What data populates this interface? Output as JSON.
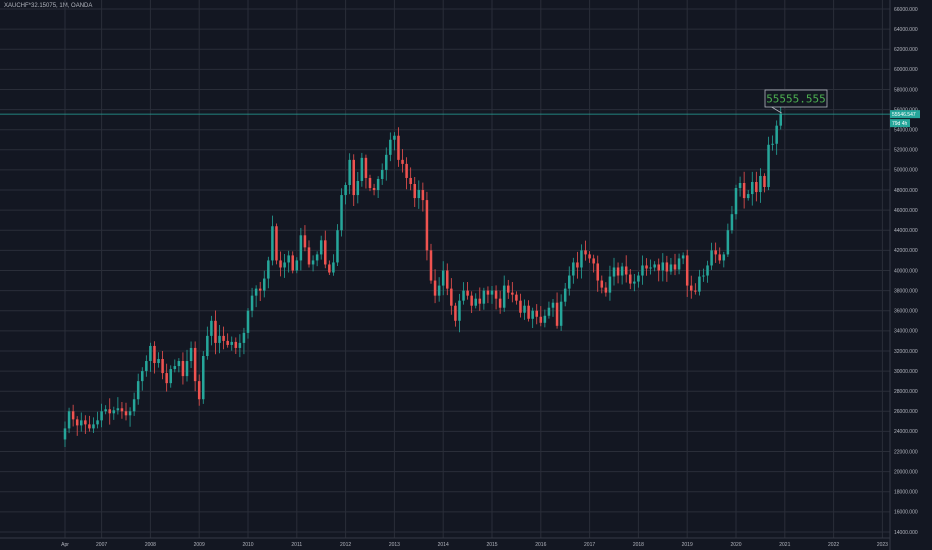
{
  "header": {
    "symbol_info": "XAUCHF*32.15075, 1M, OANDA"
  },
  "colors": {
    "background": "#131722",
    "grid": "#2a2e39",
    "up": "#26a69a",
    "down": "#ef5350",
    "annotation_text": "#4caf50"
  },
  "price_axis": {
    "current_price_label": "55546.547",
    "countdown_label": "79d 4h"
  },
  "annotation": {
    "text": "55555.555"
  },
  "chart_data": {
    "type": "candlestick",
    "interval": "1M",
    "x_start": "2006-04",
    "ylim": [
      13000,
      66000
    ],
    "grid": true,
    "y_ticks": [
      "14000.000",
      "16000.000",
      "18000.000",
      "20000.000",
      "22000.000",
      "24000.000",
      "26000.000",
      "28000.000",
      "30000.000",
      "32000.000",
      "34000.000",
      "36000.000",
      "38000.000",
      "40000.000",
      "42000.000",
      "44000.000",
      "46000.000",
      "48000.000",
      "50000.000",
      "52000.000",
      "54000.000",
      "56000.000",
      "58000.000",
      "60000.000",
      "62000.000",
      "64000.000",
      "66000.000"
    ],
    "x_ticks": [
      {
        "label": "Apr",
        "date": "2006-04"
      },
      {
        "label": "2007",
        "date": "2007-01"
      },
      {
        "label": "2008",
        "date": "2008-01"
      },
      {
        "label": "2009",
        "date": "2009-01"
      },
      {
        "label": "2010",
        "date": "2010-01"
      },
      {
        "label": "2011",
        "date": "2011-01"
      },
      {
        "label": "2012",
        "date": "2012-01"
      },
      {
        "label": "2013",
        "date": "2013-01"
      },
      {
        "label": "2014",
        "date": "2014-01"
      },
      {
        "label": "2015",
        "date": "2015-01"
      },
      {
        "label": "2016",
        "date": "2016-01"
      },
      {
        "label": "2017",
        "date": "2017-01"
      },
      {
        "label": "2018",
        "date": "2018-01"
      },
      {
        "label": "2019",
        "date": "2019-01"
      },
      {
        "label": "2020",
        "date": "2020-01"
      },
      {
        "label": "2021",
        "date": "2021-01"
      },
      {
        "label": "2022",
        "date": "2022-01"
      },
      {
        "label": "2023",
        "date": "2023-01"
      }
    ],
    "last_price": 55546.547,
    "closes": [
      24300,
      26000,
      25200,
      24600,
      25100,
      24700,
      24300,
      24700,
      25100,
      26000,
      26200,
      25800,
      26100,
      26300,
      26000,
      25600,
      26000,
      27200,
      29000,
      30000,
      31000,
      32500,
      30800,
      31200,
      29800,
      28800,
      30200,
      30500,
      31000,
      29500,
      31000,
      32300,
      29000,
      27200,
      31500,
      33500,
      35000,
      32800,
      33500,
      33000,
      32600,
      32900,
      32300,
      32800,
      33800,
      36000,
      37500,
      38200,
      38000,
      39200,
      41000,
      44400,
      41000,
      40300,
      40800,
      41500,
      40000,
      41000,
      43500,
      42300,
      40600,
      41000,
      41600,
      43000,
      40600,
      39800,
      40800,
      44000,
      47500,
      48500,
      51000,
      47500,
      48900,
      51200,
      49200,
      48200,
      48000,
      49100,
      50000,
      51500,
      53000,
      53400,
      51000,
      50600,
      49200,
      48600,
      47200,
      48000,
      47000,
      42000,
      39000,
      37500,
      38500,
      40000,
      38200,
      36500,
      35000,
      37000,
      38000,
      37500,
      36500,
      37200,
      36700,
      38000,
      37600,
      38000,
      37200,
      36300,
      38500,
      37800,
      37600,
      37000,
      35800,
      36500,
      35200,
      36000,
      35400,
      34800,
      35500,
      36300,
      36800,
      34500,
      36900,
      38200,
      39500,
      40800,
      40300,
      42000,
      41600,
      41200,
      40700,
      39000,
      38300,
      37800,
      39400,
      40300,
      39500,
      40400,
      39600,
      38700,
      38900,
      39500,
      40500,
      40200,
      40300,
      40600,
      40000,
      40800,
      39900,
      40600,
      40100,
      41200,
      41500,
      38500,
      38000,
      37900,
      39400,
      39500,
      40500,
      42000,
      41600,
      41000,
      41600,
      44000,
      45600,
      48200,
      48700,
      47200,
      47600,
      48800,
      47800,
      49400,
      48300,
      52500,
      52600,
      54400,
      55546.547
    ]
  }
}
